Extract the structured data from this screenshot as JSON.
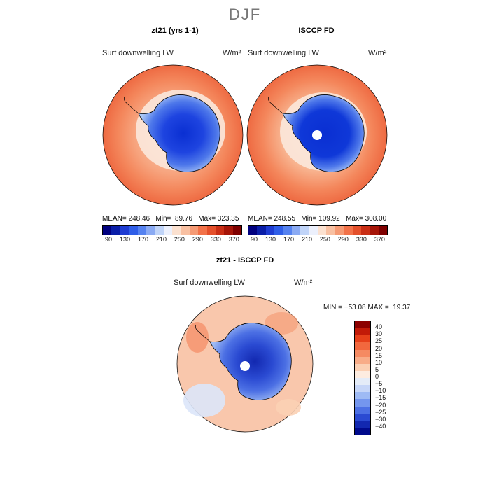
{
  "season": "DJF",
  "panels": [
    {
      "title": "zt21 (yrs 1-1)",
      "variable": "Surf downwelling LW",
      "units": "W/m²",
      "stats": "MEAN= 248.46   Min=  89.76   Max= 323.35"
    },
    {
      "title": "ISCCP FD",
      "variable": "Surf downwelling LW",
      "units": "W/m²",
      "stats": "MEAN= 248.55   Min= 109.92   Max= 308.00"
    }
  ],
  "diff_panel": {
    "title": "zt21 - ISCCP FD",
    "variable": "Surf downwelling LW",
    "units": "W/m²",
    "stats": "MIN = −53.08 MAX =  19.37"
  },
  "colorbar_abs": {
    "tick_labels": [
      "90",
      "130",
      "170",
      "210",
      "250",
      "290",
      "330",
      "370"
    ],
    "colors": [
      "#00007f",
      "#0a1ea8",
      "#1e3cd2",
      "#2f5ee8",
      "#5582f0",
      "#8aaaf3",
      "#c0d4f8",
      "#ecf0fc",
      "#fbe1d0",
      "#f8c0a2",
      "#f59a74",
      "#f27249",
      "#e4502b",
      "#c92e15",
      "#a61508",
      "#7f0000"
    ]
  },
  "colorbar_diff": {
    "tick_labels": [
      "40",
      "30",
      "25",
      "20",
      "15",
      "10",
      "5",
      "0",
      "−5",
      "−10",
      "−15",
      "−20",
      "−25",
      "−30",
      "−40"
    ],
    "colors": [
      "#8c0000",
      "#c21a08",
      "#e6401a",
      "#f2683e",
      "#f58a62",
      "#f8ac88",
      "#fbd0b4",
      "#fdece0",
      "#e4ecf8",
      "#c6d6f8",
      "#9ebaf4",
      "#7496ee",
      "#4c70e4",
      "#2a4ad2",
      "#1228b0",
      "#000a8c"
    ]
  },
  "map_colors": {
    "warm_outer": "#ee6a42",
    "warm_mid": "#f4875c",
    "warm_inner": "#f7a47e",
    "pale": "#fbd6c0",
    "cold_edge": "#aac6f6",
    "cold_mid": "#4e78ea",
    "cold_core": "#0a2fd2",
    "diff_bg": "#f9c7ac"
  }
}
